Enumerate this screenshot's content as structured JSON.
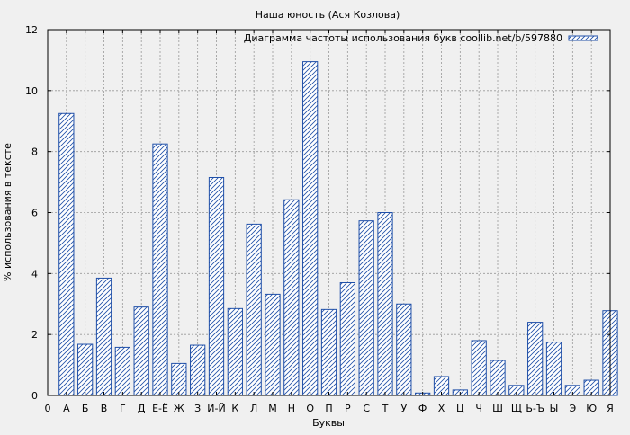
{
  "chart_data": {
    "type": "bar",
    "title": "Наша юность (Ася Козлова)",
    "xlabel": "Буквы",
    "ylabel": "% использования в тексте",
    "legend": {
      "label": "Диаграмма частоты использования букв coollib.net/b/597880",
      "placement": "top-right"
    },
    "x_ticks": [
      "0",
      "А",
      "Б",
      "В",
      "Г",
      "Д",
      "Е-Ё",
      "Ж",
      "З",
      "И-Й",
      "К",
      "Л",
      "М",
      "Н",
      "О",
      "П",
      "Р",
      "С",
      "Т",
      "У",
      "Ф",
      "Х",
      "Ц",
      "Ч",
      "Ш",
      "Щ",
      "Ь-Ъ",
      "Ы",
      "Э",
      "Ю",
      "Я"
    ],
    "categories": [
      "А",
      "Б",
      "В",
      "Г",
      "Д",
      "Е-Ё",
      "Ж",
      "З",
      "И-Й",
      "К",
      "Л",
      "М",
      "Н",
      "О",
      "П",
      "Р",
      "С",
      "Т",
      "У",
      "Ф",
      "Х",
      "Ц",
      "Ч",
      "Ш",
      "Щ",
      "Ь-Ъ",
      "Ы",
      "Э",
      "Ю",
      "Я"
    ],
    "values": [
      9.25,
      1.68,
      3.85,
      1.58,
      2.9,
      8.25,
      1.05,
      1.65,
      7.15,
      2.85,
      5.62,
      3.32,
      6.42,
      10.95,
      2.82,
      3.7,
      5.73,
      6.0,
      3.0,
      0.08,
      0.62,
      0.18,
      1.8,
      1.15,
      0.33,
      2.4,
      1.75,
      0.33,
      0.5,
      2.78
    ],
    "ylim": [
      0,
      12
    ],
    "y_ticks": [
      0,
      2,
      4,
      6,
      8,
      10,
      12
    ],
    "grid": true,
    "colors": {
      "bar_stroke": "#1f4fa8",
      "hatch": "#1f4fa8",
      "bar_fill": "#ffffff",
      "background": "#f0f0f0",
      "grid": "#999999"
    }
  }
}
